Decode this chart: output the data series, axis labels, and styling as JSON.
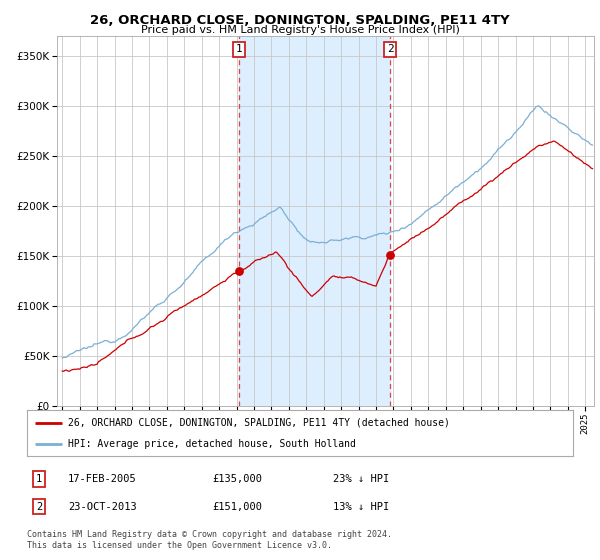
{
  "title": "26, ORCHARD CLOSE, DONINGTON, SPALDING, PE11 4TY",
  "subtitle": "Price paid vs. HM Land Registry's House Price Index (HPI)",
  "legend_label_red": "26, ORCHARD CLOSE, DONINGTON, SPALDING, PE11 4TY (detached house)",
  "legend_label_blue": "HPI: Average price, detached house, South Holland",
  "transaction1_date": "17-FEB-2005",
  "transaction1_price": 135000,
  "transaction1_label": "23% ↓ HPI",
  "transaction1_x": 2005.12,
  "transaction2_date": "23-OCT-2013",
  "transaction2_price": 151000,
  "transaction2_label": "13% ↓ HPI",
  "transaction2_x": 2013.81,
  "footnote": "Contains HM Land Registry data © Crown copyright and database right 2024.\nThis data is licensed under the Open Government Licence v3.0.",
  "background_color": "#ffffff",
  "grid_color": "#c8c8c8",
  "hpi_line_color": "#7bafd4",
  "price_line_color": "#cc0000",
  "shade_color": "#ddeeff",
  "ylim": [
    0,
    370000
  ],
  "xlim_start": 1994.7,
  "xlim_end": 2025.5
}
